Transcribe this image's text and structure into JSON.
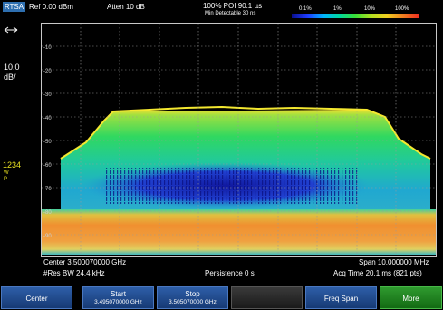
{
  "header": {
    "mode": "RTSA",
    "ref_level": "Ref 0.00 dBm",
    "atten": "Atten 10 dB",
    "poi": "100% POI 90.1 µs",
    "min_detectable": "Min Detectable 30 ns",
    "persistence_scale": [
      "0.1%",
      "1%",
      "10%",
      "100%"
    ]
  },
  "left_panel": {
    "arrow_icon": "double-arrow-icon",
    "scale_value": "10.0",
    "scale_unit": "dB/",
    "trace_numbers": "1234",
    "trace_mode_1": "W",
    "trace_mode_2": "P"
  },
  "plot": {
    "y_ticks": [
      "-10",
      "-20",
      "-30",
      "-40",
      "-50",
      "-60",
      "-70",
      "-80",
      "-90"
    ]
  },
  "footer": {
    "center": "Center 3.500070000 GHz",
    "res_bw": "#Res BW 24.4 kHz",
    "persistence": "Persistence 0  s",
    "span": "Span 10.000000 MHz",
    "acq_time": "Acq Time 20.1 ms (821 pts)"
  },
  "softkeys": [
    {
      "line1": "Center",
      "line2": ""
    },
    {
      "line1": "Start",
      "line2": "3.495070000 GHz"
    },
    {
      "line1": "Stop",
      "line2": "3.505070000 GHz"
    },
    {
      "line1": "",
      "line2": ""
    },
    {
      "line1": "Freq Span",
      "line2": ""
    },
    {
      "line1": "More",
      "line2": ""
    }
  ],
  "colors": {
    "softkey_blue": "#2e5ea8",
    "softkey_green": "#2f9a2f",
    "mode_badge": "#2e6fb0"
  }
}
